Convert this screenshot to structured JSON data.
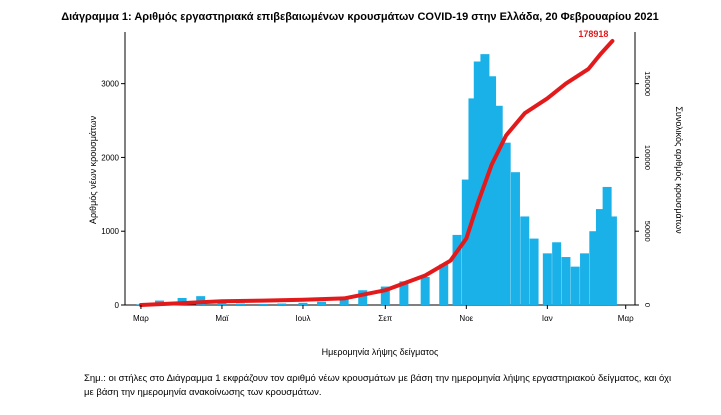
{
  "chart_data": {
    "type": "bar",
    "title": "Διάγραμμα 1: Αριθμός εργαστηριακά επιβεβαιωμένων κρουσμάτων COVID-19 στην Ελλάδα, 20 Φεβρουαρίου 2021",
    "xlabel": "Ημερομηνία λήψης δείγματος",
    "ylabel": "Αριθμός νέων κρουσμάτων",
    "y2label": "Συνολικός αριθμός κρουσμάτων",
    "x_ticks": [
      "Μαρ",
      "Μαϊ",
      "Ιουλ",
      "Σεπ",
      "Νοε",
      "Ιαν",
      "Μαρ"
    ],
    "y_ticks": [
      "0",
      "1000",
      "2000",
      "3000"
    ],
    "ylim": [
      0,
      3700
    ],
    "y2_ticks": [
      "0",
      "50000",
      "100000",
      "150000"
    ],
    "y2lim": [
      0,
      185000
    ],
    "bar_color": "#1ab0e8",
    "line_color": "#e31a1c",
    "total_label": "178918",
    "series": [
      {
        "name": "Νέα κρούσματα",
        "type": "bar",
        "points": [
          [
            "2020-03-01",
            10
          ],
          [
            "2020-03-15",
            60
          ],
          [
            "2020-04-01",
            95
          ],
          [
            "2020-04-15",
            120
          ],
          [
            "2020-05-01",
            40
          ],
          [
            "2020-05-15",
            20
          ],
          [
            "2020-06-01",
            15
          ],
          [
            "2020-06-15",
            20
          ],
          [
            "2020-07-01",
            30
          ],
          [
            "2020-07-15",
            45
          ],
          [
            "2020-08-01",
            90
          ],
          [
            "2020-08-15",
            200
          ],
          [
            "2020-09-01",
            250
          ],
          [
            "2020-09-15",
            320
          ],
          [
            "2020-10-01",
            380
          ],
          [
            "2020-10-15",
            550
          ],
          [
            "2020-10-25",
            950
          ],
          [
            "2020-11-01",
            1700
          ],
          [
            "2020-11-06",
            2800
          ],
          [
            "2020-11-10",
            3300
          ],
          [
            "2020-11-15",
            3400
          ],
          [
            "2020-11-20",
            3100
          ],
          [
            "2020-11-25",
            2700
          ],
          [
            "2020-12-01",
            2200
          ],
          [
            "2020-12-08",
            1800
          ],
          [
            "2020-12-15",
            1200
          ],
          [
            "2020-12-22",
            900
          ],
          [
            "2021-01-01",
            700
          ],
          [
            "2021-01-08",
            850
          ],
          [
            "2021-01-15",
            650
          ],
          [
            "2021-01-22",
            520
          ],
          [
            "2021-01-29",
            700
          ],
          [
            "2021-02-05",
            1000
          ],
          [
            "2021-02-10",
            1300
          ],
          [
            "2021-02-15",
            1600
          ],
          [
            "2021-02-19",
            1200
          ]
        ]
      },
      {
        "name": "Συνολικός αριθμός κρουσμάτων",
        "type": "line",
        "points": [
          [
            "2020-03-01",
            0
          ],
          [
            "2020-04-01",
            1300
          ],
          [
            "2020-05-01",
            2600
          ],
          [
            "2020-06-01",
            3000
          ],
          [
            "2020-07-01",
            3500
          ],
          [
            "2020-08-01",
            4500
          ],
          [
            "2020-09-01",
            10000
          ],
          [
            "2020-10-01",
            20000
          ],
          [
            "2020-10-20",
            30000
          ],
          [
            "2020-11-01",
            45000
          ],
          [
            "2020-11-10",
            70000
          ],
          [
            "2020-11-20",
            95000
          ],
          [
            "2020-12-01",
            115000
          ],
          [
            "2020-12-15",
            130000
          ],
          [
            "2021-01-01",
            140000
          ],
          [
            "2021-01-15",
            150000
          ],
          [
            "2021-02-01",
            160000
          ],
          [
            "2021-02-10",
            170000
          ],
          [
            "2021-02-19",
            178918
          ]
        ]
      }
    ]
  },
  "note": {
    "line1": "Σημ.: οι στήλες στο Διάγραμμα 1 εκφράζουν τον αριθμό νέων κρουσμάτων με βάση την ημερομηνία λήψης εργαστηριακού δείγματος, και όχι",
    "line2": "με βάση την ημερομηνία ανακοίνωσης των κρουσμάτων."
  }
}
